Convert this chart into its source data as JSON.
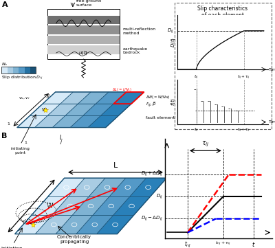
{
  "bg_color": "#ffffff",
  "fault_colors": [
    "#d6eaf8",
    "#a9cce3",
    "#7fb3d3",
    "#5499c7",
    "#2980b9",
    "#1a5276"
  ],
  "fault_edge": "#1a5276",
  "red_color": "#cc0000",
  "blue_color": "#0000cc",
  "black_color": "#000000",
  "gray_layers": [
    "#d0d0d0",
    "#b0b0b0",
    "#909090",
    "#707070"
  ],
  "slip_colors": [
    "#d6eaf8",
    "#a9cce3",
    "#7fb3d3",
    "#5499c7",
    "#2471a3",
    "#1a5276"
  ],
  "dashed_box_color": "#666666"
}
